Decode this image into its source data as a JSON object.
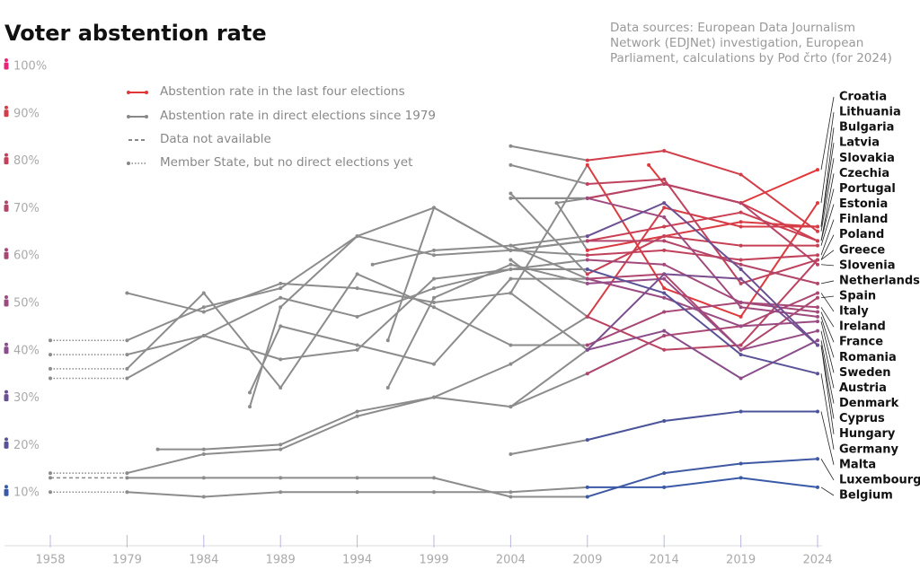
{
  "chart_data": {
    "type": "line",
    "title": "Voter abstention rate",
    "source_lines": [
      "Data sources: European Data Journalism",
      "Network (EDJNet) investigation, European",
      "Parliament, calculations by Pod črto (for 2024)"
    ],
    "legend": [
      "Abstention rate in the last four elections",
      "Abstention rate in direct elections since 1979",
      "Data not available",
      "Member State, but no direct elections yet"
    ],
    "recent_from": 2009,
    "history_color": "#8c8c8c",
    "xlim": [
      1958,
      2024
    ],
    "xticks": [
      1958,
      1979,
      1984,
      1989,
      1994,
      1999,
      2004,
      2009,
      2014,
      2019,
      2024
    ],
    "ylim": [
      0,
      100
    ],
    "yticks": [
      {
        "value": 10,
        "label": "10%"
      },
      {
        "value": 20,
        "label": "20%"
      },
      {
        "value": 30,
        "label": "30%"
      },
      {
        "value": 40,
        "label": "40%"
      },
      {
        "value": 50,
        "label": "50%"
      },
      {
        "value": 60,
        "label": "60%"
      },
      {
        "value": 70,
        "label": "70%"
      },
      {
        "value": 80,
        "label": "80%"
      },
      {
        "value": 90,
        "label": "90%"
      },
      {
        "value": 100,
        "label": "100%"
      }
    ],
    "grid": false,
    "series": [
      {
        "name": "Croatia",
        "color": "#e2383a",
        "x": [
          2013,
          2014,
          2019,
          2024
        ],
        "values": [
          79,
          75,
          71,
          78
        ]
      },
      {
        "name": "Lithuania",
        "color": "#de3a3e",
        "x": [
          2004,
          2009,
          2014,
          2019,
          2024
        ],
        "values": [
          52,
          79,
          53,
          47,
          71
        ]
      },
      {
        "name": "Bulgaria",
        "color": "#da3b42",
        "x": [
          2007,
          2009,
          2014,
          2019,
          2024
        ],
        "values": [
          71,
          61,
          64,
          67,
          66
        ]
      },
      {
        "name": "Latvia",
        "color": "#d63c46",
        "x": [
          2004,
          2009,
          2014,
          2019,
          2024
        ],
        "values": [
          59,
          47,
          70,
          66,
          66
        ]
      },
      {
        "name": "Slovakia",
        "color": "#d23d4a",
        "x": [
          2004,
          2009,
          2014,
          2019,
          2024
        ],
        "values": [
          83,
          80,
          82,
          77,
          65
        ]
      },
      {
        "name": "Czechia",
        "color": "#ce3e4e",
        "x": [
          2004,
          2009,
          2014,
          2019,
          2024
        ],
        "values": [
          72,
          72,
          75,
          71,
          63
        ]
      },
      {
        "name": "Portugal",
        "color": "#ca3f52",
        "x": [
          1987,
          1989,
          1994,
          1999,
          2004,
          2009,
          2014,
          2019,
          2024
        ],
        "values": [
          28,
          49,
          64,
          60,
          61,
          63,
          66,
          69,
          63
        ]
      },
      {
        "name": "Estonia",
        "color": "#c64056",
        "x": [
          2004,
          2009,
          2014,
          2019,
          2024
        ],
        "values": [
          73,
          56,
          64,
          62,
          62
        ]
      },
      {
        "name": "Finland",
        "color": "#c2415a",
        "x": [
          1996,
          1999,
          2004,
          2009,
          2014,
          2019,
          2024
        ],
        "values": [
          42,
          70,
          61,
          60,
          61,
          59,
          60
        ]
      },
      {
        "name": "Poland",
        "color": "#be425e",
        "x": [
          2004,
          2009,
          2014,
          2019,
          2024
        ],
        "values": [
          79,
          75,
          76,
          54,
          59
        ]
      },
      {
        "name": "Greece",
        "color": "#ba4362",
        "x": [
          1981,
          1984,
          1989,
          1994,
          1999,
          2004,
          2009,
          2014,
          2019,
          2024
        ],
        "values": [
          19,
          19,
          20,
          27,
          30,
          37,
          47,
          40,
          41,
          59
        ]
      },
      {
        "name": "Slovenia",
        "color": "#b64466",
        "x": [
          2004,
          2009,
          2014,
          2019,
          2024
        ],
        "values": [
          72,
          72,
          75,
          71,
          58
        ]
      },
      {
        "name": "Netherlands",
        "color": "#b2456a",
        "pre_line": "dotted",
        "x": [
          1979,
          1984,
          1989,
          1994,
          1999,
          2004,
          2009,
          2014,
          2019,
          2024
        ],
        "values": [
          42,
          49,
          53,
          64,
          70,
          61,
          63,
          63,
          58,
          54
        ]
      },
      {
        "name": "Spain",
        "color": "#ae466e",
        "x": [
          1987,
          1989,
          1994,
          1999,
          2004,
          2009,
          2014,
          2019,
          2024
        ],
        "values": [
          31,
          45,
          41,
          37,
          55,
          55,
          56,
          40,
          51
        ]
      },
      {
        "name": "Italy",
        "color": "#aa4772",
        "pre_line": "dotted",
        "x": [
          1979,
          1984,
          1989,
          1994,
          1999,
          2004,
          2009,
          2014,
          2019,
          2024
        ],
        "values": [
          14,
          18,
          19,
          26,
          30,
          28,
          35,
          43,
          45,
          52
        ]
      },
      {
        "name": "Ireland",
        "color": "#a64876",
        "pre_line": "dotted",
        "x": [
          1979,
          1984,
          1989,
          1994,
          1999,
          2004,
          2009,
          2014,
          2019,
          2024
        ],
        "values": [
          36,
          52,
          32,
          56,
          49,
          41,
          41,
          48,
          50,
          49
        ]
      },
      {
        "name": "France",
        "color": "#a2497a",
        "pre_line": "dotted",
        "x": [
          1979,
          1984,
          1989,
          1994,
          1999,
          2004,
          2009,
          2014,
          2019,
          2024
        ],
        "values": [
          39,
          43,
          51,
          47,
          53,
          57,
          59,
          58,
          50,
          48
        ]
      },
      {
        "name": "Romania",
        "color": "#9e4a7e",
        "x": [
          2007,
          2009,
          2014,
          2019,
          2024
        ],
        "values": [
          71,
          72,
          68,
          49,
          47
        ]
      },
      {
        "name": "Sweden",
        "color": "#9a4b82",
        "x": [
          1995,
          1999,
          2004,
          2009,
          2014,
          2019,
          2024
        ],
        "values": [
          58,
          61,
          62,
          55,
          51,
          45,
          46
        ]
      },
      {
        "name": "Austria",
        "color": "#964c86",
        "x": [
          1996,
          1999,
          2004,
          2009,
          2014,
          2019,
          2024
        ],
        "values": [
          32,
          51,
          58,
          54,
          55,
          40,
          44
        ]
      },
      {
        "name": "Denmark",
        "color": "#8a4c8a",
        "x": [
          1979,
          1984,
          1989,
          1994,
          1999,
          2004,
          2009,
          2014,
          2019,
          2024
        ],
        "values": [
          52,
          48,
          54,
          53,
          50,
          52,
          40,
          44,
          34,
          42
        ]
      },
      {
        "name": "Cyprus",
        "color": "#7a4e8e",
        "x": [
          2004,
          2009,
          2014,
          2019,
          2024
        ],
        "values": [
          28,
          40,
          56,
          55,
          41
        ]
      },
      {
        "name": "Hungary",
        "color": "#6a5092",
        "x": [
          2004,
          2009,
          2014,
          2019,
          2024
        ],
        "values": [
          62,
          64,
          71,
          57,
          41
        ]
      },
      {
        "name": "Germany",
        "color": "#5a5296",
        "pre_line": "dotted",
        "x": [
          1979,
          1984,
          1989,
          1994,
          1999,
          2004,
          2009,
          2014,
          2019,
          2024
        ],
        "values": [
          34,
          43,
          38,
          40,
          55,
          57,
          57,
          52,
          39,
          35
        ]
      },
      {
        "name": "Malta",
        "color": "#4a549a",
        "x": [
          2004,
          2009,
          2014,
          2019,
          2024
        ],
        "values": [
          18,
          21,
          25,
          27,
          27
        ]
      },
      {
        "name": "Luxembourg",
        "color": "#3f58a2",
        "pre_line": "dashed",
        "x": [
          1979,
          1984,
          1989,
          1994,
          1999,
          2004,
          2009,
          2014,
          2019,
          2024
        ],
        "values": [
          13,
          13,
          13,
          13,
          13,
          9,
          9,
          14,
          16,
          17
        ]
      },
      {
        "name": "Belgium",
        "color": "#3a5aa8",
        "pre_line": "dotted",
        "x": [
          1979,
          1984,
          1989,
          1994,
          1999,
          2004,
          2009,
          2014,
          2019,
          2024
        ],
        "values": [
          10,
          9,
          10,
          10,
          10,
          10,
          11,
          11,
          13,
          11
        ]
      }
    ]
  }
}
